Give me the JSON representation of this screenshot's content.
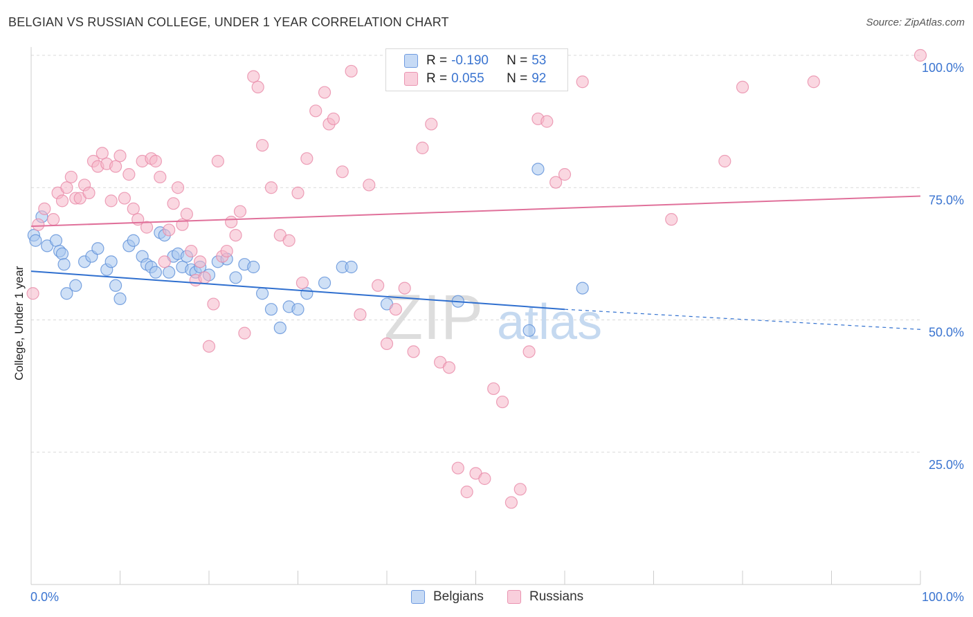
{
  "title": "BELGIAN VS RUSSIAN COLLEGE, UNDER 1 YEAR CORRELATION CHART",
  "source": "Source: ZipAtlas.com",
  "watermark": {
    "zip": "ZIP",
    "atlas": "atlas"
  },
  "legend": {
    "rows": [
      {
        "r_label": "R =",
        "r_value": "-0.190",
        "n_label": "N =",
        "n_value": "53",
        "color": "#a8c6ef"
      },
      {
        "r_label": "R =",
        "r_value": "0.055",
        "n_label": "N =",
        "n_value": "92",
        "color": "#f5b6c8"
      }
    ]
  },
  "bottom_legend": [
    "Belgians",
    "Russians"
  ],
  "colors": {
    "belgian_fill": "#a8c6ef",
    "belgian_stroke": "#5d8fd8",
    "belgian_line": "#2f6fcf",
    "russian_fill": "#f5b6c8",
    "russian_stroke": "#e88aa8",
    "russian_line": "#e0709a",
    "tick_label": "#3a74d0",
    "grid": "#d8d8d8"
  },
  "chart_data": {
    "type": "scatter",
    "title": "BELGIAN VS RUSSIAN COLLEGE, UNDER 1 YEAR CORRELATION CHART",
    "xlabel": "",
    "ylabel": "College, Under 1 year",
    "xlim": [
      0,
      100
    ],
    "ylim": [
      0,
      100
    ],
    "x_tick_labels": [
      "0.0%",
      "100.0%"
    ],
    "y_tick_labels": [
      "100.0%",
      "75.0%",
      "50.0%",
      "25.0%"
    ],
    "y_ticks": [
      100,
      75,
      50,
      25
    ],
    "grid": true,
    "legend_position": "top-center",
    "series": [
      {
        "name": "Belgians",
        "r": -0.19,
        "n": 53,
        "trend": {
          "x0": 0,
          "y0": 59.2,
          "x1": 60,
          "y1": 52.0,
          "dash_to": 100,
          "dash_y": 48.2
        },
        "points": [
          [
            0.3,
            66
          ],
          [
            0.5,
            65
          ],
          [
            1.2,
            69.5
          ],
          [
            1.8,
            64
          ],
          [
            2.8,
            65
          ],
          [
            3.2,
            63
          ],
          [
            3.5,
            62.5
          ],
          [
            3.7,
            60.5
          ],
          [
            4.0,
            55
          ],
          [
            5.0,
            56.5
          ],
          [
            6.0,
            61
          ],
          [
            6.8,
            62
          ],
          [
            7.5,
            63.5
          ],
          [
            8.5,
            59.5
          ],
          [
            9.0,
            61
          ],
          [
            9.5,
            56.5
          ],
          [
            10.0,
            54
          ],
          [
            11.0,
            64
          ],
          [
            11.5,
            65
          ],
          [
            12.5,
            62
          ],
          [
            13.0,
            60.5
          ],
          [
            13.5,
            60
          ],
          [
            14.0,
            59
          ],
          [
            14.5,
            66.5
          ],
          [
            15.0,
            66
          ],
          [
            15.5,
            59
          ],
          [
            16.0,
            62
          ],
          [
            16.5,
            62.5
          ],
          [
            17.0,
            60
          ],
          [
            17.5,
            62
          ],
          [
            18.0,
            59.5
          ],
          [
            18.5,
            59
          ],
          [
            19.0,
            60
          ],
          [
            20.0,
            58.5
          ],
          [
            21.0,
            61
          ],
          [
            22.0,
            61.5
          ],
          [
            23.0,
            58
          ],
          [
            24.0,
            60.5
          ],
          [
            25.0,
            60
          ],
          [
            26.0,
            55
          ],
          [
            27.0,
            52
          ],
          [
            28.0,
            48.5
          ],
          [
            29.0,
            52.5
          ],
          [
            30.0,
            52
          ],
          [
            31.0,
            55
          ],
          [
            33.0,
            57
          ],
          [
            35.0,
            60
          ],
          [
            36.0,
            60
          ],
          [
            40.0,
            53
          ],
          [
            48.0,
            53.5
          ],
          [
            56.0,
            48
          ],
          [
            57.0,
            78.5
          ],
          [
            62.0,
            56
          ]
        ]
      },
      {
        "name": "Russians",
        "r": 0.055,
        "n": 92,
        "trend": {
          "x0": 0,
          "y0": 67.7,
          "x1": 100,
          "y1": 73.4
        },
        "points": [
          [
            0.2,
            55
          ],
          [
            0.8,
            68
          ],
          [
            1.5,
            71
          ],
          [
            2.5,
            69
          ],
          [
            3.0,
            74
          ],
          [
            3.5,
            72.5
          ],
          [
            4.0,
            75
          ],
          [
            4.5,
            77
          ],
          [
            5.0,
            73
          ],
          [
            5.5,
            73
          ],
          [
            6.0,
            75.5
          ],
          [
            6.5,
            74
          ],
          [
            7.0,
            80
          ],
          [
            7.5,
            79
          ],
          [
            8.0,
            81.5
          ],
          [
            8.5,
            79.5
          ],
          [
            9.0,
            72.5
          ],
          [
            9.5,
            79
          ],
          [
            10.0,
            81
          ],
          [
            10.5,
            73
          ],
          [
            11.0,
            77.5
          ],
          [
            11.5,
            71
          ],
          [
            12.0,
            69
          ],
          [
            12.5,
            80
          ],
          [
            13.0,
            67.5
          ],
          [
            13.5,
            80.5
          ],
          [
            14.0,
            80
          ],
          [
            14.5,
            77
          ],
          [
            15.0,
            61
          ],
          [
            15.5,
            67
          ],
          [
            16.0,
            72
          ],
          [
            16.5,
            75
          ],
          [
            17.0,
            68
          ],
          [
            17.5,
            70
          ],
          [
            18.0,
            63
          ],
          [
            18.5,
            57.5
          ],
          [
            19.0,
            61
          ],
          [
            19.5,
            58
          ],
          [
            20.0,
            45
          ],
          [
            20.5,
            53
          ],
          [
            21.0,
            80
          ],
          [
            21.5,
            62
          ],
          [
            22.0,
            63
          ],
          [
            22.5,
            68.5
          ],
          [
            23.0,
            66
          ],
          [
            23.5,
            70.5
          ],
          [
            24.0,
            47.5
          ],
          [
            25.0,
            96
          ],
          [
            25.5,
            94
          ],
          [
            26.0,
            83
          ],
          [
            27.0,
            75
          ],
          [
            28.0,
            66
          ],
          [
            29.0,
            65
          ],
          [
            30.0,
            74
          ],
          [
            30.5,
            57
          ],
          [
            31.0,
            80.5
          ],
          [
            32.0,
            89.5
          ],
          [
            33.0,
            93
          ],
          [
            33.5,
            87
          ],
          [
            34.0,
            88
          ],
          [
            35.0,
            78
          ],
          [
            36.0,
            97
          ],
          [
            37.0,
            51
          ],
          [
            38.0,
            75.5
          ],
          [
            39.0,
            56.5
          ],
          [
            40.0,
            45.5
          ],
          [
            41.0,
            52
          ],
          [
            42.0,
            56
          ],
          [
            43.0,
            44
          ],
          [
            44.0,
            82.5
          ],
          [
            45.0,
            87
          ],
          [
            46.0,
            42
          ],
          [
            47.0,
            41
          ],
          [
            48.0,
            22
          ],
          [
            49.0,
            17.5
          ],
          [
            50.0,
            21
          ],
          [
            51.0,
            20
          ],
          [
            52.0,
            37
          ],
          [
            53.0,
            34.5
          ],
          [
            54.0,
            15.5
          ],
          [
            55.0,
            18
          ],
          [
            56.0,
            44
          ],
          [
            57.0,
            88
          ],
          [
            58.0,
            87.5
          ],
          [
            59.0,
            76
          ],
          [
            60.0,
            77.5
          ],
          [
            62.0,
            95
          ],
          [
            72.0,
            69
          ],
          [
            78.0,
            80
          ],
          [
            80.0,
            94
          ],
          [
            88.0,
            95
          ],
          [
            100.0,
            100
          ]
        ]
      }
    ]
  }
}
